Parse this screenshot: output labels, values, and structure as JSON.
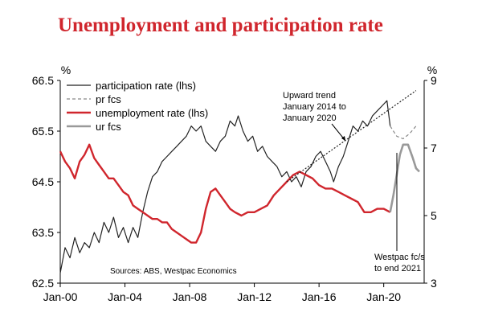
{
  "chart_data": {
    "type": "line",
    "title": "Unemployment and participation rate",
    "left_axis": {
      "unit": "%",
      "range": [
        62.5,
        66.5
      ],
      "ticks": [
        62.5,
        63.5,
        64.5,
        65.5,
        66.5
      ]
    },
    "right_axis": {
      "unit": "%",
      "range": [
        3,
        9
      ],
      "ticks": [
        3,
        5,
        7,
        9
      ]
    },
    "x_axis": {
      "range": [
        2000,
        2022.5
      ],
      "ticks": [
        {
          "value": 2000,
          "label": "Jan-00"
        },
        {
          "value": 2004,
          "label": "Jan-04"
        },
        {
          "value": 2008,
          "label": "Jan-08"
        },
        {
          "value": 2012,
          "label": "Jan-12"
        },
        {
          "value": 2016,
          "label": "Jan-16"
        },
        {
          "value": 2020,
          "label": "Jan-20"
        }
      ]
    },
    "legend_position": "top-left",
    "series": [
      {
        "name": "participation rate (lhs)",
        "axis": "left",
        "color": "#222222",
        "style": "solid",
        "points": [
          [
            2000.0,
            62.7
          ],
          [
            2000.3,
            63.2
          ],
          [
            2000.6,
            63.0
          ],
          [
            2000.9,
            63.4
          ],
          [
            2001.2,
            63.1
          ],
          [
            2001.5,
            63.3
          ],
          [
            2001.8,
            63.2
          ],
          [
            2002.1,
            63.5
          ],
          [
            2002.4,
            63.3
          ],
          [
            2002.7,
            63.7
          ],
          [
            2003.0,
            63.5
          ],
          [
            2003.3,
            63.8
          ],
          [
            2003.6,
            63.4
          ],
          [
            2003.9,
            63.6
          ],
          [
            2004.2,
            63.3
          ],
          [
            2004.5,
            63.6
          ],
          [
            2004.8,
            63.4
          ],
          [
            2005.1,
            63.9
          ],
          [
            2005.4,
            64.3
          ],
          [
            2005.7,
            64.6
          ],
          [
            2006.0,
            64.7
          ],
          [
            2006.3,
            64.9
          ],
          [
            2006.6,
            65.0
          ],
          [
            2006.9,
            65.1
          ],
          [
            2007.2,
            65.2
          ],
          [
            2007.5,
            65.3
          ],
          [
            2007.8,
            65.4
          ],
          [
            2008.1,
            65.6
          ],
          [
            2008.4,
            65.5
          ],
          [
            2008.7,
            65.6
          ],
          [
            2009.0,
            65.3
          ],
          [
            2009.3,
            65.2
          ],
          [
            2009.6,
            65.1
          ],
          [
            2009.9,
            65.3
          ],
          [
            2010.2,
            65.4
          ],
          [
            2010.5,
            65.7
          ],
          [
            2010.8,
            65.6
          ],
          [
            2011.0,
            65.8
          ],
          [
            2011.3,
            65.5
          ],
          [
            2011.6,
            65.3
          ],
          [
            2011.9,
            65.4
          ],
          [
            2012.2,
            65.1
          ],
          [
            2012.5,
            65.2
          ],
          [
            2012.8,
            65.0
          ],
          [
            2013.1,
            64.9
          ],
          [
            2013.4,
            64.8
          ],
          [
            2013.7,
            64.6
          ],
          [
            2014.0,
            64.7
          ],
          [
            2014.3,
            64.5
          ],
          [
            2014.6,
            64.6
          ],
          [
            2014.9,
            64.4
          ],
          [
            2015.2,
            64.7
          ],
          [
            2015.5,
            64.8
          ],
          [
            2015.8,
            65.0
          ],
          [
            2016.1,
            65.1
          ],
          [
            2016.4,
            64.9
          ],
          [
            2016.7,
            64.7
          ],
          [
            2016.9,
            64.5
          ],
          [
            2017.2,
            64.8
          ],
          [
            2017.5,
            65.0
          ],
          [
            2017.8,
            65.3
          ],
          [
            2018.1,
            65.6
          ],
          [
            2018.4,
            65.5
          ],
          [
            2018.7,
            65.7
          ],
          [
            2019.0,
            65.6
          ],
          [
            2019.3,
            65.8
          ],
          [
            2019.6,
            65.9
          ],
          [
            2019.9,
            66.0
          ],
          [
            2020.2,
            66.1
          ],
          [
            2020.4,
            65.6
          ]
        ]
      },
      {
        "name": "pr fcs",
        "axis": "left",
        "color": "#888888",
        "style": "dashed",
        "points": [
          [
            2020.4,
            65.6
          ],
          [
            2020.8,
            65.4
          ],
          [
            2021.2,
            65.35
          ],
          [
            2021.6,
            65.45
          ],
          [
            2022.0,
            65.6
          ]
        ]
      },
      {
        "name": "unemployment rate (lhs)",
        "axis": "right",
        "color": "#d0262d",
        "style": "solid",
        "points": [
          [
            2000.0,
            6.9
          ],
          [
            2000.3,
            6.6
          ],
          [
            2000.6,
            6.4
          ],
          [
            2000.9,
            6.1
          ],
          [
            2001.2,
            6.6
          ],
          [
            2001.5,
            6.8
          ],
          [
            2001.8,
            7.1
          ],
          [
            2002.1,
            6.7
          ],
          [
            2002.4,
            6.5
          ],
          [
            2002.7,
            6.3
          ],
          [
            2003.0,
            6.1
          ],
          [
            2003.3,
            6.1
          ],
          [
            2003.6,
            5.9
          ],
          [
            2003.9,
            5.7
          ],
          [
            2004.2,
            5.6
          ],
          [
            2004.5,
            5.3
          ],
          [
            2004.8,
            5.2
          ],
          [
            2005.1,
            5.1
          ],
          [
            2005.4,
            5.0
          ],
          [
            2005.7,
            4.9
          ],
          [
            2006.0,
            4.9
          ],
          [
            2006.3,
            4.8
          ],
          [
            2006.6,
            4.8
          ],
          [
            2006.9,
            4.6
          ],
          [
            2007.2,
            4.5
          ],
          [
            2007.5,
            4.4
          ],
          [
            2007.8,
            4.3
          ],
          [
            2008.1,
            4.2
          ],
          [
            2008.4,
            4.2
          ],
          [
            2008.7,
            4.5
          ],
          [
            2009.0,
            5.2
          ],
          [
            2009.3,
            5.7
          ],
          [
            2009.6,
            5.8
          ],
          [
            2009.9,
            5.6
          ],
          [
            2010.2,
            5.4
          ],
          [
            2010.5,
            5.2
          ],
          [
            2010.8,
            5.1
          ],
          [
            2011.2,
            5.0
          ],
          [
            2011.6,
            5.1
          ],
          [
            2012.0,
            5.1
          ],
          [
            2012.4,
            5.2
          ],
          [
            2012.8,
            5.3
          ],
          [
            2013.2,
            5.6
          ],
          [
            2013.6,
            5.8
          ],
          [
            2014.0,
            6.0
          ],
          [
            2014.4,
            6.2
          ],
          [
            2014.8,
            6.3
          ],
          [
            2015.2,
            6.2
          ],
          [
            2015.6,
            6.1
          ],
          [
            2016.0,
            5.9
          ],
          [
            2016.4,
            5.8
          ],
          [
            2016.8,
            5.8
          ],
          [
            2017.2,
            5.7
          ],
          [
            2017.6,
            5.6
          ],
          [
            2018.0,
            5.5
          ],
          [
            2018.4,
            5.4
          ],
          [
            2018.8,
            5.1
          ],
          [
            2019.2,
            5.1
          ],
          [
            2019.6,
            5.2
          ],
          [
            2020.0,
            5.2
          ],
          [
            2020.4,
            5.1
          ]
        ]
      },
      {
        "name": "ur fcs",
        "axis": "right",
        "color": "#999999",
        "style": "solid",
        "points": [
          [
            2020.4,
            5.1
          ],
          [
            2020.6,
            5.6
          ],
          [
            2020.8,
            6.2
          ],
          [
            2021.0,
            6.8
          ],
          [
            2021.2,
            7.1
          ],
          [
            2021.5,
            7.1
          ],
          [
            2021.8,
            6.7
          ],
          [
            2022.0,
            6.4
          ],
          [
            2022.2,
            6.3
          ]
        ]
      },
      {
        "name": "trend",
        "axis": "left",
        "color": "#222222",
        "style": "dotted",
        "points": [
          [
            2014.0,
            64.5
          ],
          [
            2022.0,
            66.3
          ]
        ]
      }
    ],
    "annotations": [
      {
        "id": "trend_note",
        "lines": [
          "Upward trend",
          "January 2014 to",
          "January 2020"
        ]
      },
      {
        "id": "fcst_note",
        "lines": [
          "Westpac fc/s",
          "to end 2021"
        ]
      },
      {
        "id": "source",
        "lines": [
          "Sources: ABS, Westpac Economics"
        ]
      }
    ]
  }
}
